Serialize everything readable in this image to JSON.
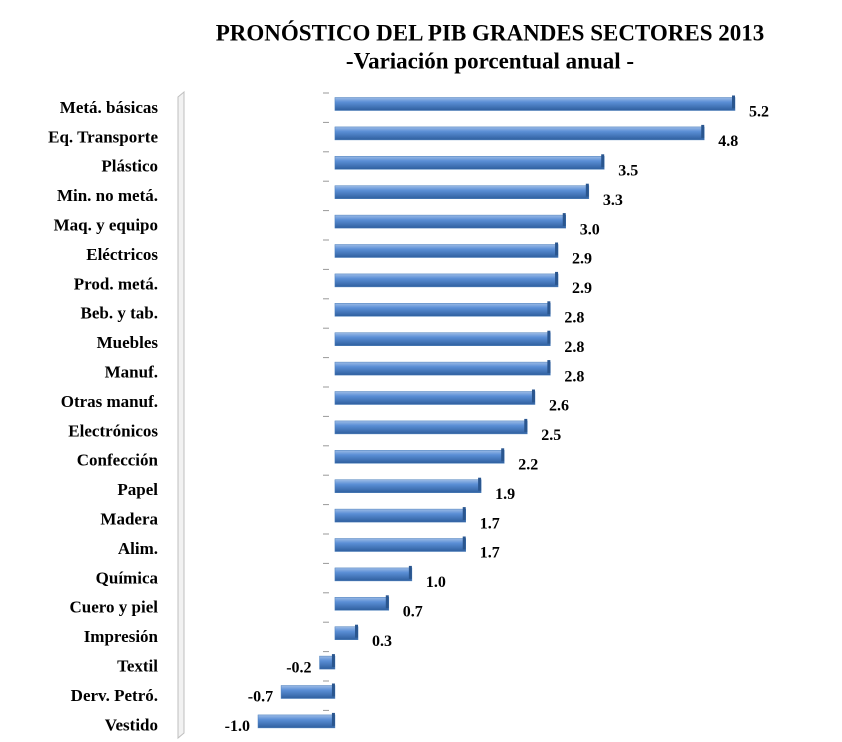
{
  "chart_data": {
    "type": "bar",
    "orientation": "horizontal",
    "title": "PRONÓSTICO DEL PIB GRANDES SECTORES 2013",
    "subtitle": "-Variación porcentual anual -",
    "categories": [
      "Metá. básicas",
      "Eq. Transporte",
      "Plástico",
      "Min. no metá.",
      "Maq. y equipo",
      "Eléctricos",
      "Prod. metá.",
      "Beb. y tab.",
      "Muebles",
      "Manuf.",
      "Otras manuf.",
      "Electrónicos",
      "Confección",
      "Papel",
      "Madera",
      "Alim.",
      "Química",
      "Cuero y piel",
      "Impresión",
      "Textil",
      "Derv. Petró.",
      "Vestido"
    ],
    "values": [
      5.2,
      4.8,
      3.5,
      3.3,
      3.0,
      2.9,
      2.9,
      2.8,
      2.8,
      2.8,
      2.6,
      2.5,
      2.2,
      1.9,
      1.7,
      1.7,
      1.0,
      0.7,
      0.3,
      -0.2,
      -0.7,
      -1.0
    ],
    "value_labels": [
      "5.2",
      "4.8",
      "3.5",
      "3.3",
      "3.0",
      "2.9",
      "2.9",
      "2.8",
      "2.8",
      "2.8",
      "2.6",
      "2.5",
      "2.2",
      "1.9",
      "1.7",
      "1.7",
      "1.0",
      "0.7",
      "0.3",
      "-0.2",
      "-0.7",
      "-1.0"
    ],
    "color": "#4a7ebb"
  }
}
